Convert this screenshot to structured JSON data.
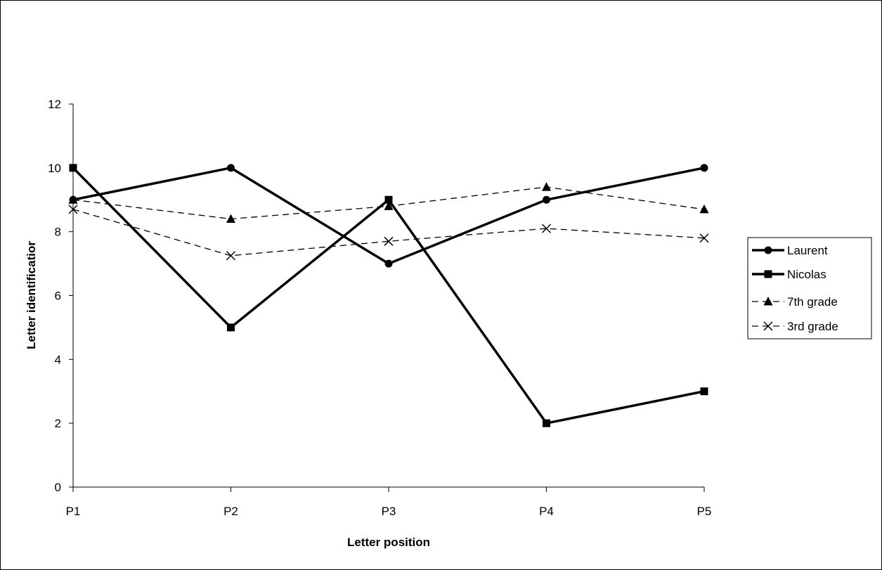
{
  "chart_data": {
    "type": "line",
    "title": "",
    "xlabel": "Letter position",
    "ylabel": "Letter identificatior",
    "categories": [
      "P1",
      "P2",
      "P3",
      "P4",
      "P5"
    ],
    "ylim": [
      0,
      12
    ],
    "yticks": [
      "0",
      "2",
      "4",
      "6",
      "8",
      "10",
      "12"
    ],
    "grid": false,
    "legend_position": "right",
    "series": [
      {
        "name": "Laurent",
        "values": [
          9,
          10,
          7,
          9,
          10
        ],
        "line": "solid",
        "marker": "circle"
      },
      {
        "name": "Nicolas",
        "values": [
          10,
          5,
          9,
          2,
          3
        ],
        "line": "solid",
        "marker": "square"
      },
      {
        "name": "7th grade",
        "values": [
          9.0,
          8.4,
          8.8,
          9.4,
          8.7
        ],
        "line": "dashed",
        "marker": "triangle"
      },
      {
        "name": "3rd grade",
        "values": [
          8.7,
          7.25,
          7.7,
          8.1,
          7.8
        ],
        "line": "dashed",
        "marker": "x"
      }
    ]
  }
}
